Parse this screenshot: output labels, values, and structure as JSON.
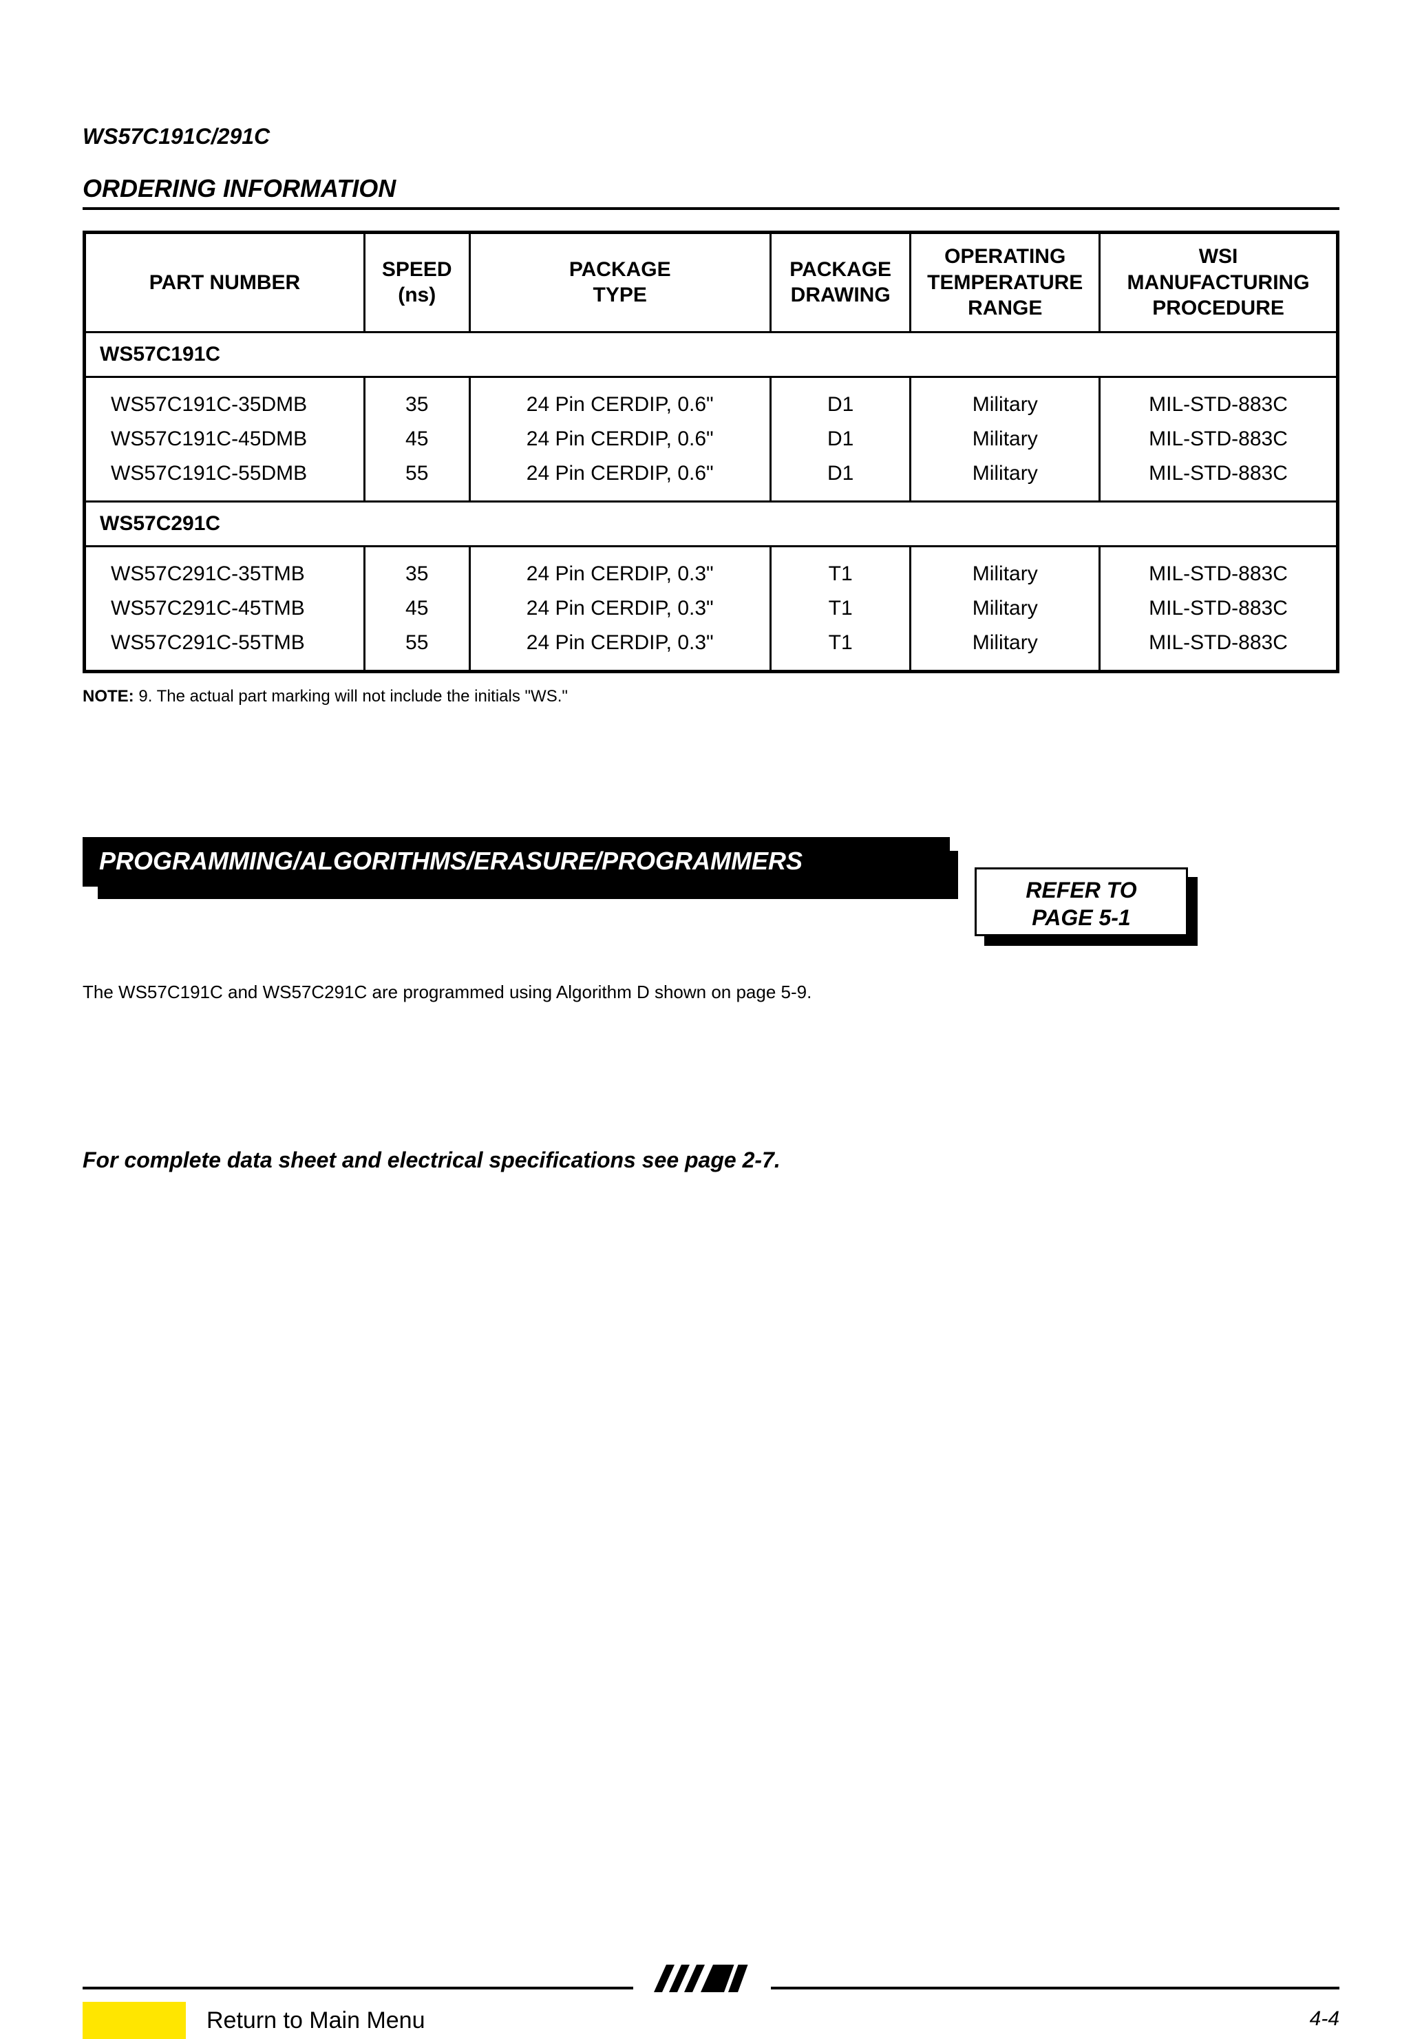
{
  "header_part": "WS57C191C/291C",
  "ordering": {
    "title": "ORDERING INFORMATION",
    "columns": [
      "PART NUMBER",
      "SPEED\n(ns)",
      "PACKAGE\nTYPE",
      "PACKAGE\nDRAWING",
      "OPERATING\nTEMPERATURE\nRANGE",
      "WSI\nMANUFACTURING\nPROCEDURE"
    ],
    "group1": {
      "label": "WS57C191C",
      "rows": [
        {
          "pn": "WS57C191C-35DMB",
          "spd": "35",
          "ptype": "24 Pin CERDIP, 0.6\"",
          "pdraw": "D1",
          "temp": "Military",
          "proc": "MIL-STD-883C"
        },
        {
          "pn": "WS57C191C-45DMB",
          "spd": "45",
          "ptype": "24 Pin CERDIP, 0.6\"",
          "pdraw": "D1",
          "temp": "Military",
          "proc": "MIL-STD-883C"
        },
        {
          "pn": "WS57C191C-55DMB",
          "spd": "55",
          "ptype": "24 Pin CERDIP, 0.6\"",
          "pdraw": "D1",
          "temp": "Military",
          "proc": "MIL-STD-883C"
        }
      ]
    },
    "group2": {
      "label": "WS57C291C",
      "rows": [
        {
          "pn": "WS57C291C-35TMB",
          "spd": "35",
          "ptype": "24 Pin CERDIP, 0.3\"",
          "pdraw": "T1",
          "temp": "Military",
          "proc": "MIL-STD-883C"
        },
        {
          "pn": "WS57C291C-45TMB",
          "spd": "45",
          "ptype": "24 Pin CERDIP, 0.3\"",
          "pdraw": "T1",
          "temp": "Military",
          "proc": "MIL-STD-883C"
        },
        {
          "pn": "WS57C291C-55TMB",
          "spd": "55",
          "ptype": "24 Pin CERDIP, 0.3\"",
          "pdraw": "T1",
          "temp": "Military",
          "proc": "MIL-STD-883C"
        }
      ]
    },
    "note_label": "NOTE:",
    "note_text": " 9. The actual part marking will not include the initials \"WS.\""
  },
  "programming": {
    "title": "PROGRAMMING/ALGORITHMS/ERASURE/PROGRAMMERS",
    "refer": "REFER TO\nPAGE 5-1",
    "body": "The WS57C191C and WS57C291C are programmed using Algorithm D shown on page 5-9."
  },
  "complete": "For complete data sheet and electrical specifications see page 2-7.",
  "footer": {
    "menu": "Return to Main Menu",
    "page": "4-4"
  }
}
